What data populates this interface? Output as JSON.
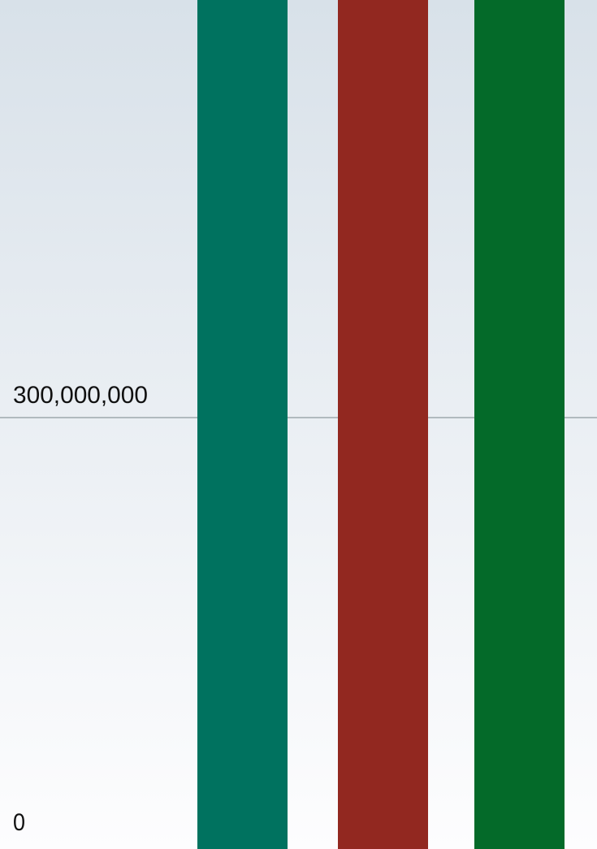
{
  "chart_data": {
    "type": "bar",
    "title": "",
    "xlabel": "",
    "ylabel": "",
    "categories": [
      "",
      "",
      ""
    ],
    "values": [
      600000000,
      600000000,
      600000000
    ],
    "bar_colors": [
      "#00725f",
      "#922820",
      "#046a29"
    ],
    "y_ticks": [
      {
        "value": 0,
        "label": "0"
      },
      {
        "value": 300000000,
        "label": "300,000,000"
      }
    ],
    "ylim": [
      0,
      600000000
    ],
    "grid": true,
    "background_top": "#d8e1e9",
    "background_bottom": "#fdfdfe",
    "gridline_color": "#9ea8ac"
  }
}
